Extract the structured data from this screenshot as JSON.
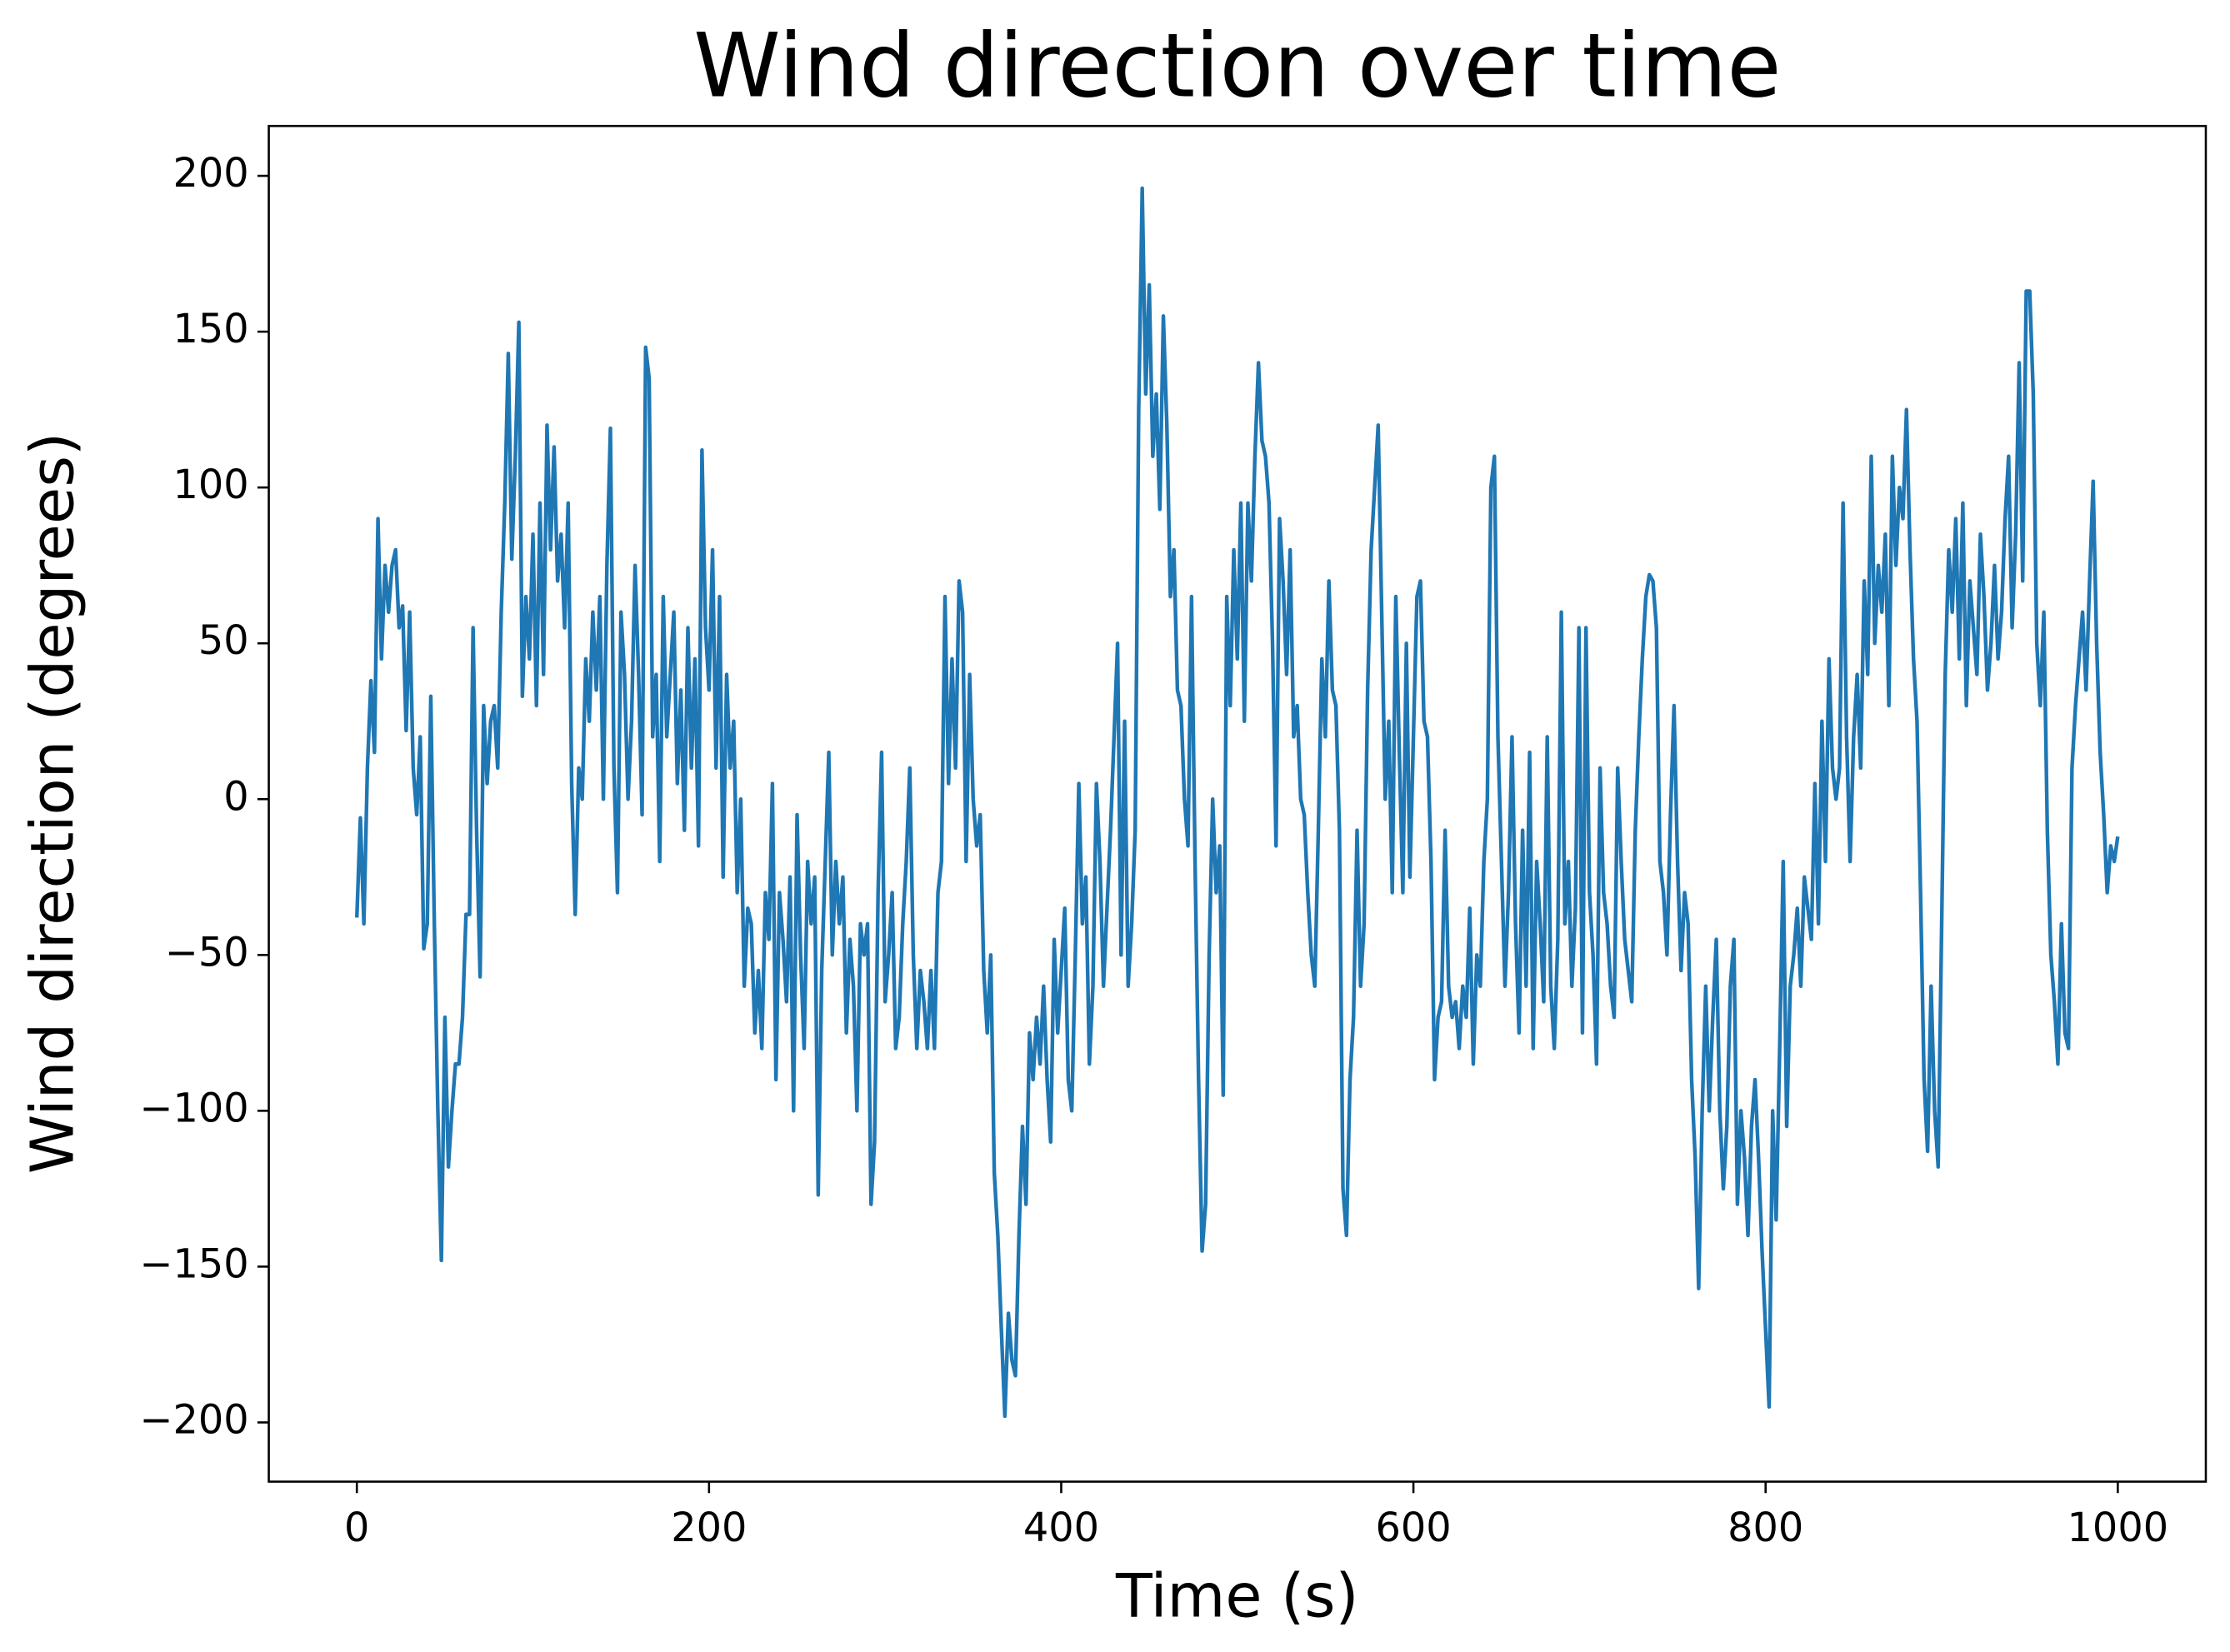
{
  "chart_data": {
    "type": "line",
    "title": "Wind direction over time",
    "xlabel": "Time (s)",
    "ylabel": "Wind direction (degrees)",
    "color": "#1f77b4",
    "grid": false,
    "xlim": [
      -50,
      1050
    ],
    "xticks": [
      0,
      200,
      400,
      600,
      800,
      1000
    ],
    "ylim": [
      -219,
      216
    ],
    "yticks": [
      {
        "value": -200,
        "label": "−200"
      },
      {
        "value": -150,
        "label": "−150"
      },
      {
        "value": -100,
        "label": "−100"
      },
      {
        "value": -50,
        "label": "−50"
      },
      0,
      50,
      100,
      150,
      200
    ],
    "x": [
      0,
      2,
      4,
      6,
      8,
      10,
      12,
      14,
      16,
      18,
      20,
      22,
      24,
      26,
      28,
      30,
      32,
      34,
      36,
      38,
      40,
      42,
      44,
      46,
      48,
      50,
      52,
      54,
      56,
      58,
      60,
      62,
      64,
      66,
      68,
      70,
      72,
      74,
      76,
      78,
      80,
      82,
      84,
      86,
      88,
      90,
      92,
      94,
      96,
      98,
      100,
      102,
      104,
      106,
      108,
      110,
      112,
      114,
      116,
      118,
      120,
      122,
      124,
      126,
      128,
      130,
      132,
      134,
      136,
      138,
      140,
      142,
      144,
      146,
      148,
      150,
      152,
      154,
      156,
      158,
      160,
      162,
      164,
      166,
      168,
      170,
      172,
      174,
      176,
      178,
      180,
      182,
      184,
      186,
      188,
      190,
      192,
      194,
      196,
      198,
      200,
      202,
      204,
      206,
      208,
      210,
      212,
      214,
      216,
      218,
      220,
      222,
      224,
      226,
      228,
      230,
      232,
      234,
      236,
      238,
      240,
      242,
      244,
      246,
      248,
      250,
      252,
      254,
      256,
      258,
      260,
      262,
      264,
      266,
      268,
      270,
      272,
      274,
      276,
      278,
      280,
      282,
      284,
      286,
      288,
      290,
      292,
      294,
      296,
      298,
      300,
      302,
      304,
      306,
      308,
      310,
      312,
      314,
      316,
      318,
      320,
      322,
      324,
      326,
      328,
      330,
      332,
      334,
      336,
      338,
      340,
      342,
      344,
      346,
      348,
      350,
      352,
      354,
      356,
      358,
      360,
      362,
      364,
      366,
      368,
      370,
      372,
      374,
      376,
      378,
      380,
      382,
      384,
      386,
      388,
      390,
      392,
      394,
      396,
      398,
      400,
      402,
      404,
      406,
      408,
      410,
      412,
      414,
      416,
      418,
      420,
      422,
      424,
      426,
      428,
      430,
      432,
      434,
      436,
      438,
      440,
      442,
      444,
      446,
      448,
      450,
      452,
      454,
      456,
      458,
      460,
      462,
      464,
      466,
      468,
      470,
      472,
      474,
      476,
      478,
      480,
      482,
      484,
      486,
      488,
      490,
      492,
      494,
      496,
      498,
      500,
      502,
      504,
      506,
      508,
      510,
      512,
      514,
      516,
      518,
      520,
      522,
      524,
      526,
      528,
      530,
      532,
      534,
      536,
      538,
      540,
      542,
      544,
      546,
      548,
      550,
      552,
      554,
      556,
      558,
      560,
      562,
      564,
      566,
      568,
      570,
      572,
      574,
      576,
      578,
      580,
      582,
      584,
      586,
      588,
      590,
      592,
      594,
      596,
      598,
      600,
      602,
      604,
      606,
      608,
      610,
      612,
      614,
      616,
      618,
      620,
      622,
      624,
      626,
      628,
      630,
      632,
      634,
      636,
      638,
      640,
      642,
      644,
      646,
      648,
      650,
      652,
      654,
      656,
      658,
      660,
      662,
      664,
      666,
      668,
      670,
      672,
      674,
      676,
      678,
      680,
      682,
      684,
      686,
      688,
      690,
      692,
      694,
      696,
      698,
      700,
      702,
      704,
      706,
      708,
      710,
      712,
      714,
      716,
      718,
      720,
      722,
      724,
      726,
      728,
      730,
      732,
      734,
      736,
      738,
      740,
      742,
      744,
      746,
      748,
      750,
      752,
      754,
      756,
      758,
      760,
      762,
      764,
      766,
      768,
      770,
      772,
      774,
      776,
      778,
      780,
      782,
      784,
      786,
      788,
      790,
      792,
      794,
      796,
      798,
      800,
      802,
      804,
      806,
      808,
      810,
      812,
      814,
      816,
      818,
      820,
      822,
      824,
      826,
      828,
      830,
      832,
      834,
      836,
      838,
      840,
      842,
      844,
      846,
      848,
      850,
      852,
      854,
      856,
      858,
      860,
      862,
      864,
      866,
      868,
      870,
      872,
      874,
      876,
      878,
      880,
      882,
      884,
      886,
      888,
      890,
      892,
      894,
      896,
      898,
      900,
      902,
      904,
      906,
      908,
      910,
      912,
      914,
      916,
      918,
      920,
      922,
      924,
      926,
      928,
      930,
      932,
      934,
      936,
      938,
      940,
      942,
      944,
      946,
      948,
      950,
      952,
      954,
      956,
      958,
      960,
      962,
      964,
      966,
      968,
      970,
      972,
      974,
      976,
      978,
      980,
      982,
      984,
      986,
      988,
      990,
      992,
      994,
      996,
      998,
      1000
    ],
    "values": [
      -38,
      -6,
      -40,
      10,
      38,
      15,
      90,
      45,
      75,
      60,
      75,
      80,
      55,
      62,
      22,
      60,
      10,
      -5,
      20,
      -48,
      -40,
      33,
      -40,
      -100,
      -148,
      -70,
      -118,
      -100,
      -85,
      -85,
      -70,
      -37,
      -37,
      55,
      -10,
      -57,
      30,
      5,
      25,
      30,
      10,
      60,
      95,
      143,
      77,
      110,
      153,
      33,
      65,
      45,
      85,
      30,
      95,
      40,
      120,
      80,
      113,
      70,
      85,
      55,
      95,
      5,
      -37,
      10,
      0,
      45,
      25,
      60,
      35,
      65,
      0,
      75,
      119,
      10,
      -30,
      60,
      40,
      0,
      25,
      75,
      40,
      -5,
      145,
      135,
      20,
      40,
      -20,
      65,
      20,
      40,
      60,
      5,
      35,
      -10,
      55,
      10,
      45,
      -15,
      112,
      55,
      35,
      80,
      10,
      65,
      -25,
      40,
      10,
      25,
      -30,
      0,
      -60,
      -35,
      -40,
      -75,
      -55,
      -80,
      -30,
      -45,
      5,
      -90,
      -30,
      -45,
      -65,
      -25,
      -100,
      -5,
      -50,
      -80,
      -20,
      -40,
      -25,
      -127,
      -55,
      -20,
      15,
      -50,
      -20,
      -40,
      -25,
      -75,
      -45,
      -60,
      -100,
      -40,
      -50,
      -40,
      -130,
      -110,
      -30,
      15,
      -65,
      -50,
      -30,
      -80,
      -70,
      -40,
      -20,
      10,
      -50,
      -80,
      -55,
      -65,
      -80,
      -55,
      -80,
      -30,
      -20,
      65,
      5,
      45,
      10,
      70,
      60,
      -20,
      40,
      0,
      -15,
      -5,
      -55,
      -75,
      -50,
      -120,
      -140,
      -170,
      -198,
      -165,
      -180,
      -185,
      -140,
      -105,
      -130,
      -75,
      -90,
      -70,
      -85,
      -60,
      -90,
      -110,
      -45,
      -75,
      -55,
      -35,
      -90,
      -100,
      -50,
      5,
      -40,
      -25,
      -85,
      -60,
      5,
      -20,
      -60,
      -35,
      -10,
      20,
      50,
      -50,
      25,
      -60,
      -40,
      -10,
      125,
      196,
      130,
      165,
      110,
      130,
      93,
      155,
      120,
      65,
      80,
      35,
      30,
      0,
      -15,
      65,
      -20,
      -90,
      -145,
      -130,
      -50,
      0,
      -30,
      -15,
      -95,
      65,
      30,
      80,
      45,
      95,
      25,
      95,
      70,
      110,
      140,
      115,
      110,
      95,
      50,
      -15,
      90,
      70,
      40,
      80,
      20,
      30,
      0,
      -5,
      -30,
      -50,
      -60,
      -10,
      45,
      20,
      70,
      35,
      30,
      -10,
      -125,
      -140,
      -90,
      -70,
      -10,
      -60,
      -40,
      35,
      80,
      100,
      120,
      60,
      0,
      25,
      -30,
      65,
      15,
      -30,
      50,
      -25,
      20,
      65,
      70,
      25,
      20,
      -20,
      -90,
      -70,
      -65,
      -10,
      -60,
      -70,
      -65,
      -80,
      -60,
      -70,
      -35,
      -85,
      -50,
      -60,
      -20,
      0,
      100,
      110,
      20,
      -20,
      -60,
      -30,
      20,
      -40,
      -75,
      -10,
      -60,
      15,
      -80,
      -20,
      -40,
      -65,
      20,
      -60,
      -80,
      -45,
      60,
      -40,
      -20,
      -60,
      -35,
      55,
      -75,
      55,
      -30,
      -50,
      -85,
      10,
      -30,
      -40,
      -60,
      -70,
      10,
      -20,
      -45,
      -55,
      -65,
      -10,
      20,
      45,
      65,
      72,
      70,
      55,
      -20,
      -30,
      -50,
      -5,
      30,
      -20,
      -55,
      -30,
      -40,
      -90,
      -115,
      -157,
      -100,
      -60,
      -100,
      -70,
      -45,
      -100,
      -125,
      -105,
      -60,
      -45,
      -130,
      -100,
      -115,
      -140,
      -105,
      -90,
      -115,
      -145,
      -170,
      -195,
      -100,
      -135,
      -80,
      -20,
      -105,
      -60,
      -50,
      -35,
      -60,
      -25,
      -35,
      -45,
      5,
      -40,
      25,
      -20,
      45,
      10,
      0,
      10,
      95,
      20,
      -20,
      20,
      40,
      10,
      70,
      40,
      110,
      50,
      75,
      60,
      85,
      30,
      110,
      75,
      100,
      90,
      125,
      80,
      45,
      25,
      -30,
      -90,
      -113,
      -60,
      -100,
      -118,
      -40,
      40,
      80,
      60,
      90,
      45,
      95,
      30,
      70,
      55,
      40,
      85,
      65,
      35,
      50,
      75,
      45,
      60,
      90,
      110,
      55,
      85,
      140,
      70,
      163,
      163,
      130,
      50,
      30,
      60,
      -10,
      -50,
      -65,
      -85,
      -40,
      -75,
      -80,
      10,
      30,
      45,
      60,
      35,
      70,
      102,
      50,
      15,
      -5,
      -30,
      -15,
      -20,
      -12
    ]
  }
}
